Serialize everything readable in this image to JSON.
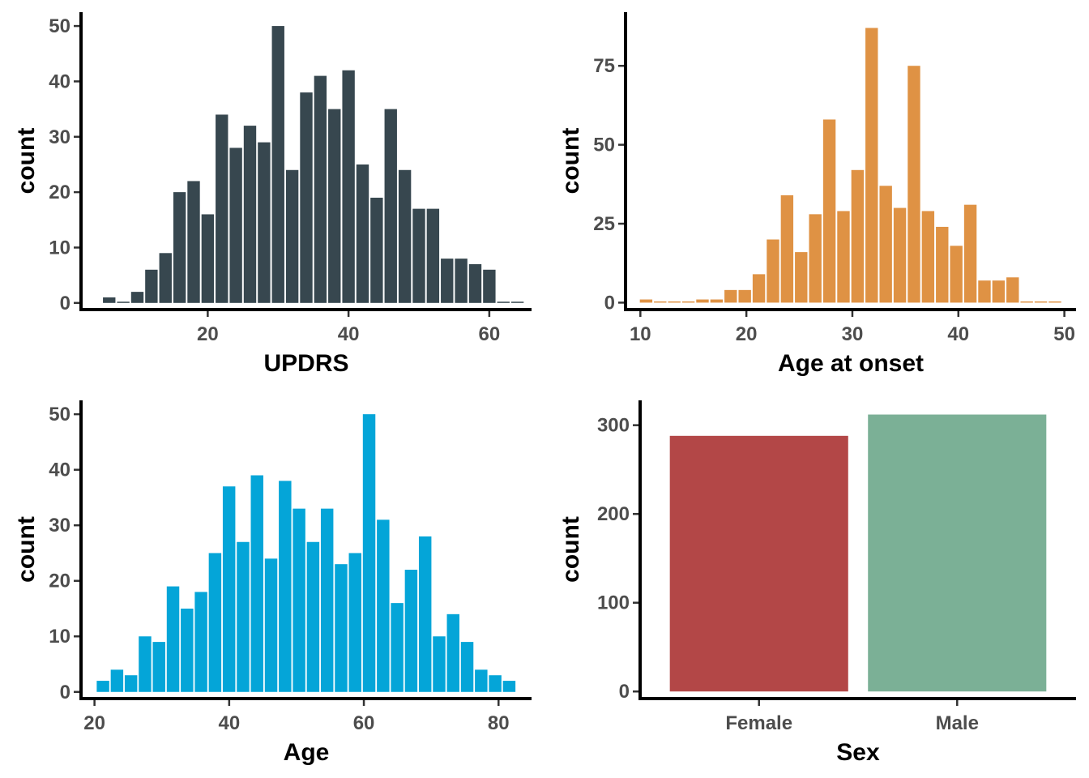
{
  "chart_data": [
    {
      "type": "bar",
      "subtype": "histogram",
      "xlabel": "UPDRS",
      "ylabel": "count",
      "color": "#37474f",
      "bin_width": 2,
      "x": [
        6,
        8,
        10,
        12,
        14,
        16,
        18,
        20,
        22,
        24,
        26,
        28,
        30,
        32,
        34,
        36,
        38,
        40,
        42,
        44,
        46,
        48,
        50,
        52,
        54,
        56,
        58,
        60,
        62,
        64
      ],
      "values": [
        1,
        0,
        2,
        6,
        9,
        20,
        22,
        16,
        34,
        28,
        32,
        29,
        50,
        24,
        38,
        41,
        35,
        42,
        25,
        19,
        35,
        24,
        17,
        17,
        8,
        8,
        7,
        6,
        0,
        0
      ],
      "xlim": [
        2,
        66
      ],
      "ylim": [
        -1.2,
        52.5
      ],
      "xticks": [
        "20",
        "40",
        "60"
      ],
      "xtick_values": [
        20,
        40,
        60
      ],
      "yticks": [
        "0",
        "10",
        "20",
        "30",
        "40",
        "50"
      ],
      "ytick_values": [
        0,
        10,
        20,
        30,
        40,
        50
      ]
    },
    {
      "type": "bar",
      "subtype": "histogram",
      "xlabel": "Age at onset",
      "ylabel": "count",
      "color": "#df9244",
      "bin_width": 1.33,
      "x": [
        10.54,
        11.87,
        13.2,
        14.53,
        15.86,
        17.19,
        18.52,
        19.85,
        21.18,
        22.51,
        23.84,
        25.17,
        26.5,
        27.83,
        29.16,
        30.49,
        31.82,
        33.15,
        34.48,
        35.81,
        37.14,
        38.47,
        39.8,
        41.13,
        42.46,
        43.79,
        45.12,
        46.45,
        47.78,
        49.11
      ],
      "values": [
        1,
        0,
        0,
        0,
        1,
        1,
        4,
        4,
        9,
        20,
        34,
        16,
        28,
        58,
        29,
        42,
        87,
        37,
        30,
        75,
        29,
        24,
        18,
        31,
        7,
        7,
        8,
        0,
        0,
        0
      ],
      "xlim": [
        8.6,
        51.1
      ],
      "ylim": [
        -2.2,
        92
      ],
      "xticks": [
        "10",
        "20",
        "30",
        "40",
        "50"
      ],
      "xtick_values": [
        10,
        20,
        30,
        40,
        50
      ],
      "yticks": [
        "0",
        "25",
        "50",
        "75"
      ],
      "ytick_values": [
        0,
        25,
        50,
        75
      ]
    },
    {
      "type": "bar",
      "subtype": "histogram",
      "xlabel": "Age",
      "ylabel": "count",
      "color": "#04a5d8",
      "bin_width": 2.1,
      "x": [
        21.26,
        23.34,
        25.42,
        27.5,
        29.58,
        31.66,
        33.74,
        35.82,
        37.9,
        39.98,
        42.06,
        44.14,
        46.22,
        48.3,
        50.38,
        52.46,
        54.54,
        56.62,
        58.7,
        60.78,
        62.86,
        64.94,
        67.02,
        69.1,
        71.18,
        73.26,
        75.34,
        77.42,
        79.5,
        81.58
      ],
      "values": [
        2,
        4,
        3,
        10,
        9,
        19,
        15,
        18,
        25,
        37,
        27,
        39,
        24,
        38,
        33,
        27,
        33,
        23,
        25,
        50,
        31,
        16,
        22,
        28,
        10,
        14,
        9,
        4,
        3,
        2
      ],
      "xlim": [
        18,
        84.9
      ],
      "ylim": [
        -1.2,
        52.5
      ],
      "xticks": [
        "20",
        "40",
        "60",
        "80"
      ],
      "xtick_values": [
        20,
        40,
        60,
        80
      ],
      "yticks": [
        "0",
        "10",
        "20",
        "30",
        "40",
        "50"
      ],
      "ytick_values": [
        0,
        10,
        20,
        30,
        40,
        50
      ]
    },
    {
      "type": "bar",
      "xlabel": "Sex",
      "ylabel": "count",
      "categories": [
        "Female",
        "Male"
      ],
      "values": [
        288,
        312
      ],
      "colors": [
        "#b34747",
        "#7bb096"
      ],
      "ylim": [
        -8,
        328
      ],
      "yticks": [
        "0",
        "100",
        "200",
        "300"
      ],
      "ytick_values": [
        0,
        100,
        200,
        300
      ]
    }
  ]
}
